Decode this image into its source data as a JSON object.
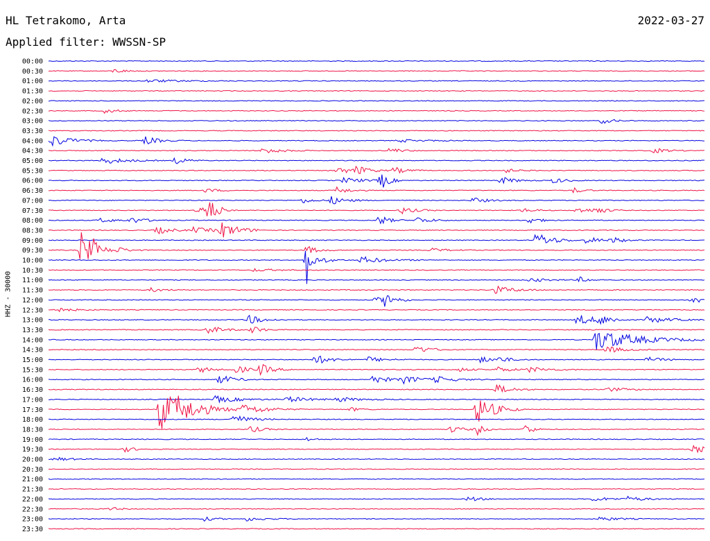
{
  "header": {
    "station": "HL Tetrakomo, Arta",
    "date": "2022-03-27",
    "filter": "Applied filter: WWSSN-SP"
  },
  "colors": {
    "even_line": "#0000e0",
    "odd_line": "#ee1144"
  },
  "chart_data": {
    "type": "line",
    "title": "HL Tetrakomo, Arta",
    "subtitle": "Applied filter: WWSSN-SP",
    "ylabel": "HHZ - 30000",
    "xlabel": "",
    "row_labels": [
      "00:00",
      "00:30",
      "01:00",
      "01:30",
      "02:00",
      "02:30",
      "03:00",
      "03:30",
      "04:00",
      "04:30",
      "05:00",
      "05:30",
      "06:00",
      "06:30",
      "07:00",
      "07:30",
      "08:00",
      "08:30",
      "09:00",
      "09:30",
      "10:00",
      "10:30",
      "11:00",
      "11:30",
      "12:00",
      "12:30",
      "13:00",
      "13:30",
      "14:00",
      "14:30",
      "15:00",
      "15:30",
      "16:00",
      "16:30",
      "17:00",
      "17:30",
      "18:00",
      "18:30",
      "19:00",
      "19:30",
      "20:00",
      "20:30",
      "21:00",
      "21:30",
      "22:00",
      "22:30",
      "23:00",
      "23:30"
    ],
    "x_range_minutes": [
      0,
      30
    ],
    "line_colors": [
      "#0000e0",
      "#ee1144"
    ],
    "events": [
      {
        "row": 1,
        "t": 3.0,
        "a": 3,
        "d": 0.5
      },
      {
        "row": 2,
        "t": 4.5,
        "a": 2,
        "d": 1.5
      },
      {
        "row": 5,
        "t": 2.6,
        "a": 4,
        "d": 0.4
      },
      {
        "row": 6,
        "t": 25.3,
        "a": 4,
        "d": 0.5
      },
      {
        "row": 8,
        "t": 0.1,
        "a": 9,
        "d": 0.8
      },
      {
        "row": 8,
        "t": 4.4,
        "a": 6,
        "d": 0.6
      },
      {
        "row": 8,
        "t": 16.0,
        "a": 2,
        "d": 1.2
      },
      {
        "row": 9,
        "t": 9.8,
        "a": 5,
        "d": 0.7
      },
      {
        "row": 9,
        "t": 15.6,
        "a": 4,
        "d": 0.5
      },
      {
        "row": 9,
        "t": 27.7,
        "a": 4,
        "d": 0.5
      },
      {
        "row": 10,
        "t": 2.5,
        "a": 5,
        "d": 0.9
      },
      {
        "row": 10,
        "t": 5.8,
        "a": 5,
        "d": 0.5
      },
      {
        "row": 11,
        "t": 13.2,
        "a": 5,
        "d": 0.7
      },
      {
        "row": 11,
        "t": 14.1,
        "a": 6,
        "d": 0.5
      },
      {
        "row": 11,
        "t": 15.8,
        "a": 5,
        "d": 0.5
      },
      {
        "row": 11,
        "t": 20.9,
        "a": 3,
        "d": 0.5
      },
      {
        "row": 12,
        "t": 13.5,
        "a": 4,
        "d": 0.9
      },
      {
        "row": 12,
        "t": 15.2,
        "a": 14,
        "d": 0.3
      },
      {
        "row": 12,
        "t": 20.7,
        "a": 5,
        "d": 0.6
      },
      {
        "row": 12,
        "t": 23.1,
        "a": 4,
        "d": 0.5
      },
      {
        "row": 13,
        "t": 7.2,
        "a": 3,
        "d": 0.5
      },
      {
        "row": 13,
        "t": 13.2,
        "a": 5,
        "d": 0.5
      },
      {
        "row": 13,
        "t": 24.0,
        "a": 4,
        "d": 0.4
      },
      {
        "row": 14,
        "t": 11.6,
        "a": 4,
        "d": 0.5
      },
      {
        "row": 14,
        "t": 12.9,
        "a": 6,
        "d": 0.6
      },
      {
        "row": 14,
        "t": 19.4,
        "a": 4,
        "d": 0.6
      },
      {
        "row": 15,
        "t": 6.8,
        "a": 6,
        "d": 0.6
      },
      {
        "row": 15,
        "t": 7.3,
        "a": 16,
        "d": 0.4
      },
      {
        "row": 15,
        "t": 16.1,
        "a": 5,
        "d": 0.6
      },
      {
        "row": 15,
        "t": 21.7,
        "a": 3,
        "d": 0.5
      },
      {
        "row": 15,
        "t": 24.1,
        "a": 4,
        "d": 0.7
      },
      {
        "row": 15,
        "t": 25.0,
        "a": 5,
        "d": 0.4
      },
      {
        "row": 16,
        "t": 2.3,
        "a": 3,
        "d": 0.8
      },
      {
        "row": 16,
        "t": 3.8,
        "a": 4,
        "d": 0.6
      },
      {
        "row": 16,
        "t": 15.1,
        "a": 8,
        "d": 0.4
      },
      {
        "row": 16,
        "t": 16.8,
        "a": 5,
        "d": 0.6
      },
      {
        "row": 16,
        "t": 21.9,
        "a": 5,
        "d": 0.5
      },
      {
        "row": 17,
        "t": 4.9,
        "a": 6,
        "d": 0.6
      },
      {
        "row": 17,
        "t": 6.6,
        "a": 4,
        "d": 1.0
      },
      {
        "row": 17,
        "t": 7.9,
        "a": 11,
        "d": 0.7
      },
      {
        "row": 18,
        "t": 22.3,
        "a": 11,
        "d": 0.7
      },
      {
        "row": 18,
        "t": 24.6,
        "a": 5,
        "d": 0.6
      },
      {
        "row": 18,
        "t": 25.8,
        "a": 4,
        "d": 0.5
      },
      {
        "row": 19,
        "t": 1.5,
        "a": 28,
        "d": 0.2
      },
      {
        "row": 19,
        "t": 1.8,
        "a": 8,
        "d": 0.6
      },
      {
        "row": 19,
        "t": 2.0,
        "a": 12,
        "d": 0.3
      },
      {
        "row": 19,
        "t": 3.1,
        "a": 4,
        "d": 0.5
      },
      {
        "row": 19,
        "t": 11.8,
        "a": 6,
        "d": 0.5
      },
      {
        "row": 19,
        "t": 17.4,
        "a": 3,
        "d": 0.7
      },
      {
        "row": 20,
        "t": 11.8,
        "a": 38,
        "d": 0.2
      },
      {
        "row": 20,
        "t": 12.6,
        "a": 4,
        "d": 0.4
      },
      {
        "row": 20,
        "t": 14.3,
        "a": 5,
        "d": 1.0
      },
      {
        "row": 21,
        "t": 9.4,
        "a": 2,
        "d": 1.0
      },
      {
        "row": 22,
        "t": 22.0,
        "a": 3,
        "d": 0.8
      },
      {
        "row": 22,
        "t": 24.3,
        "a": 4,
        "d": 0.4
      },
      {
        "row": 23,
        "t": 4.7,
        "a": 3,
        "d": 0.5
      },
      {
        "row": 23,
        "t": 20.4,
        "a": 6,
        "d": 0.8
      },
      {
        "row": 24,
        "t": 14.9,
        "a": 4,
        "d": 0.6
      },
      {
        "row": 24,
        "t": 15.4,
        "a": 10,
        "d": 0.4
      },
      {
        "row": 24,
        "t": 29.4,
        "a": 6,
        "d": 0.5
      },
      {
        "row": 25,
        "t": 0.3,
        "a": 3,
        "d": 0.8
      },
      {
        "row": 26,
        "t": 9.1,
        "a": 7,
        "d": 0.6
      },
      {
        "row": 26,
        "t": 24.2,
        "a": 8,
        "d": 0.8
      },
      {
        "row": 26,
        "t": 25.2,
        "a": 6,
        "d": 0.5
      },
      {
        "row": 26,
        "t": 27.4,
        "a": 5,
        "d": 0.9
      },
      {
        "row": 27,
        "t": 7.3,
        "a": 6,
        "d": 0.6
      },
      {
        "row": 27,
        "t": 9.3,
        "a": 6,
        "d": 0.4
      },
      {
        "row": 28,
        "t": 25.0,
        "a": 16,
        "d": 1.7
      },
      {
        "row": 29,
        "t": 16.8,
        "a": 6,
        "d": 0.6
      },
      {
        "row": 29,
        "t": 25.5,
        "a": 5,
        "d": 0.7
      },
      {
        "row": 30,
        "t": 12.2,
        "a": 7,
        "d": 0.6
      },
      {
        "row": 30,
        "t": 14.6,
        "a": 4,
        "d": 0.7
      },
      {
        "row": 30,
        "t": 19.7,
        "a": 5,
        "d": 0.5
      },
      {
        "row": 30,
        "t": 20.5,
        "a": 4,
        "d": 0.6
      },
      {
        "row": 30,
        "t": 27.4,
        "a": 4,
        "d": 0.6
      },
      {
        "row": 31,
        "t": 6.9,
        "a": 5,
        "d": 0.5
      },
      {
        "row": 31,
        "t": 8.6,
        "a": 6,
        "d": 0.5
      },
      {
        "row": 31,
        "t": 9.7,
        "a": 8,
        "d": 0.5
      },
      {
        "row": 31,
        "t": 18.8,
        "a": 3,
        "d": 0.5
      },
      {
        "row": 31,
        "t": 20.5,
        "a": 4,
        "d": 0.6
      },
      {
        "row": 31,
        "t": 22.0,
        "a": 4,
        "d": 0.8
      },
      {
        "row": 32,
        "t": 7.8,
        "a": 7,
        "d": 0.6
      },
      {
        "row": 32,
        "t": 14.8,
        "a": 6,
        "d": 0.7
      },
      {
        "row": 32,
        "t": 16.2,
        "a": 5,
        "d": 0.9
      },
      {
        "row": 32,
        "t": 17.7,
        "a": 4,
        "d": 0.8
      },
      {
        "row": 33,
        "t": 20.5,
        "a": 7,
        "d": 0.6
      },
      {
        "row": 33,
        "t": 25.5,
        "a": 3,
        "d": 0.9
      },
      {
        "row": 34,
        "t": 7.6,
        "a": 5,
        "d": 1.0
      },
      {
        "row": 34,
        "t": 10.9,
        "a": 4,
        "d": 1.0
      },
      {
        "row": 34,
        "t": 13.2,
        "a": 3,
        "d": 1.0
      },
      {
        "row": 35,
        "t": 5.1,
        "a": 32,
        "d": 0.8
      },
      {
        "row": 35,
        "t": 5.8,
        "a": 10,
        "d": 1.6
      },
      {
        "row": 35,
        "t": 8.9,
        "a": 6,
        "d": 0.9
      },
      {
        "row": 35,
        "t": 19.6,
        "a": 22,
        "d": 0.7
      },
      {
        "row": 35,
        "t": 13.8,
        "a": 3,
        "d": 0.4
      },
      {
        "row": 36,
        "t": 8.4,
        "a": 7,
        "d": 0.7
      },
      {
        "row": 37,
        "t": 9.2,
        "a": 5,
        "d": 0.5
      },
      {
        "row": 37,
        "t": 18.4,
        "a": 5,
        "d": 0.5
      },
      {
        "row": 37,
        "t": 19.6,
        "a": 8,
        "d": 0.3
      },
      {
        "row": 37,
        "t": 21.8,
        "a": 9,
        "d": 0.3
      },
      {
        "row": 38,
        "t": 11.8,
        "a": 3,
        "d": 0.3
      },
      {
        "row": 39,
        "t": 3.5,
        "a": 4,
        "d": 0.4
      },
      {
        "row": 39,
        "t": 29.5,
        "a": 5,
        "d": 0.8
      },
      {
        "row": 40,
        "t": 0.3,
        "a": 3,
        "d": 0.6
      },
      {
        "row": 44,
        "t": 19.2,
        "a": 4,
        "d": 0.5
      },
      {
        "row": 44,
        "t": 24.9,
        "a": 3,
        "d": 0.8
      },
      {
        "row": 44,
        "t": 26.5,
        "a": 3,
        "d": 0.8
      },
      {
        "row": 45,
        "t": 2.8,
        "a": 3,
        "d": 0.4
      },
      {
        "row": 46,
        "t": 7.1,
        "a": 3,
        "d": 0.5
      },
      {
        "row": 46,
        "t": 9.0,
        "a": 3,
        "d": 0.8
      },
      {
        "row": 46,
        "t": 25.2,
        "a": 3,
        "d": 0.8
      }
    ]
  }
}
